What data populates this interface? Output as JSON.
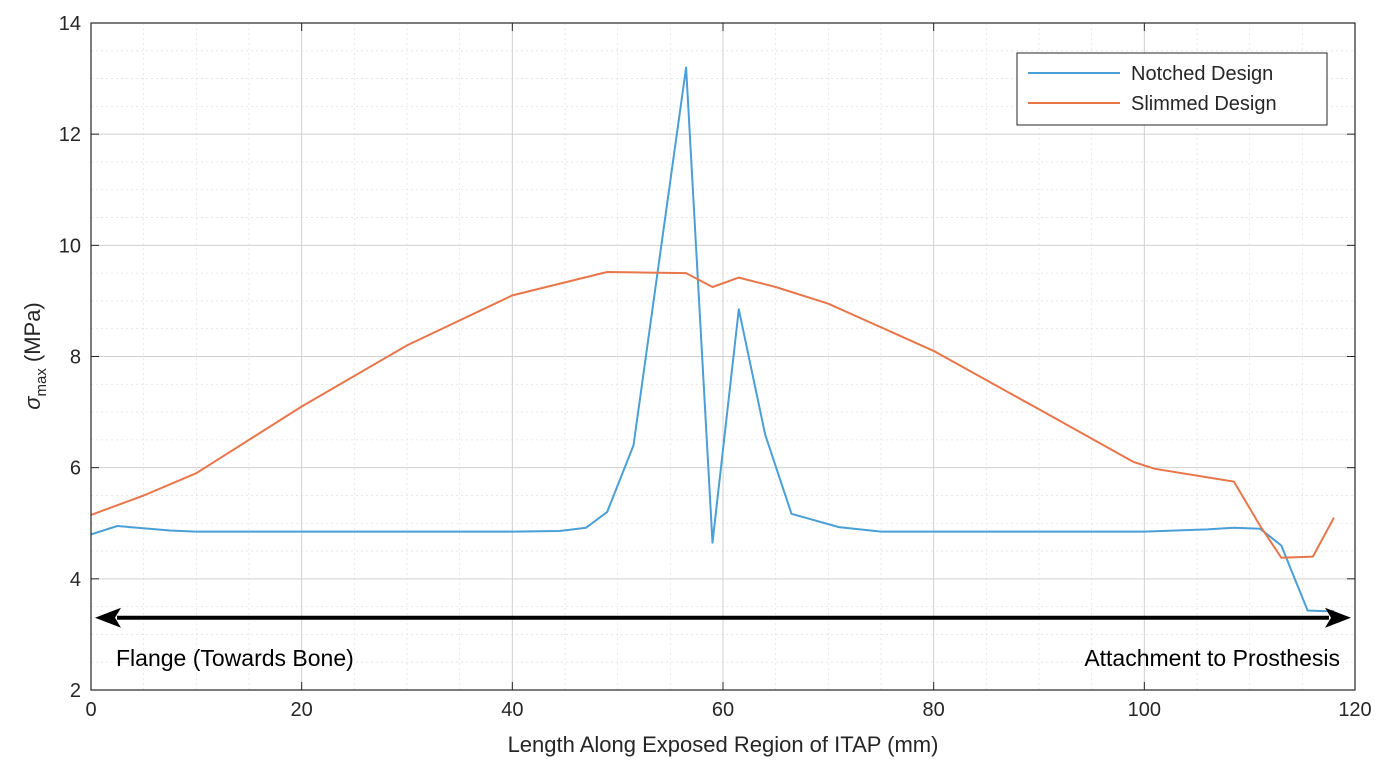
{
  "chart_data": {
    "type": "line",
    "title": "",
    "xlabel": "Length Along Exposed Region of ITAP (mm)",
    "ylabel_symbol": "σ",
    "ylabel_subscript": "max",
    "ylabel_unit": "(MPa)",
    "xlim": [
      0,
      120
    ],
    "ylim": [
      2,
      14
    ],
    "xticks": [
      0,
      20,
      40,
      60,
      80,
      100,
      120
    ],
    "yticks": [
      2,
      4,
      6,
      8,
      10,
      12,
      14
    ],
    "xtick_labels": [
      "0",
      "20",
      "40",
      "60",
      "80",
      "100",
      "120"
    ],
    "ytick_labels": [
      "2",
      "4",
      "6",
      "8",
      "10",
      "12",
      "14"
    ],
    "grid": true,
    "minor_grid": true,
    "legend_position": "top-right",
    "series": [
      {
        "name": "Notched Design",
        "color": "#4a9fd6",
        "x": [
          0,
          2.5,
          7.5,
          10,
          20,
          30,
          40,
          44.5,
          47,
          49,
          51.5,
          54,
          56.5,
          59,
          61.5,
          64,
          66.5,
          71,
          75,
          80,
          90,
          100,
          106,
          108.5,
          111,
          113,
          115.5,
          117,
          118
        ],
        "y": [
          4.8,
          4.95,
          4.87,
          4.85,
          4.85,
          4.85,
          4.85,
          4.86,
          4.92,
          5.2,
          6.4,
          9.8,
          13.2,
          4.65,
          8.85,
          6.6,
          5.17,
          4.93,
          4.85,
          4.85,
          4.85,
          4.85,
          4.89,
          4.92,
          4.9,
          4.6,
          3.43,
          3.42,
          3.42
        ]
      },
      {
        "name": "Slimmed Design",
        "color": "#e8764a",
        "x": [
          0,
          5,
          10,
          20,
          30,
          40,
          49,
          53,
          56.5,
          59,
          61.5,
          65,
          70,
          80,
          90,
          99,
          101,
          108.5,
          111,
          113,
          116,
          118
        ],
        "y": [
          5.15,
          5.5,
          5.9,
          7.1,
          8.2,
          9.1,
          9.52,
          9.51,
          9.5,
          9.25,
          9.42,
          9.25,
          8.95,
          8.1,
          7.05,
          6.1,
          5.98,
          5.75,
          4.95,
          4.38,
          4.4,
          5.1
        ]
      }
    ],
    "annotation": {
      "arrow_from_x": 0,
      "arrow_to_x": 120,
      "arrow_y": 3.3,
      "left_label": "Flange (Towards Bone)",
      "right_label": "Attachment to Prosthesis"
    }
  }
}
